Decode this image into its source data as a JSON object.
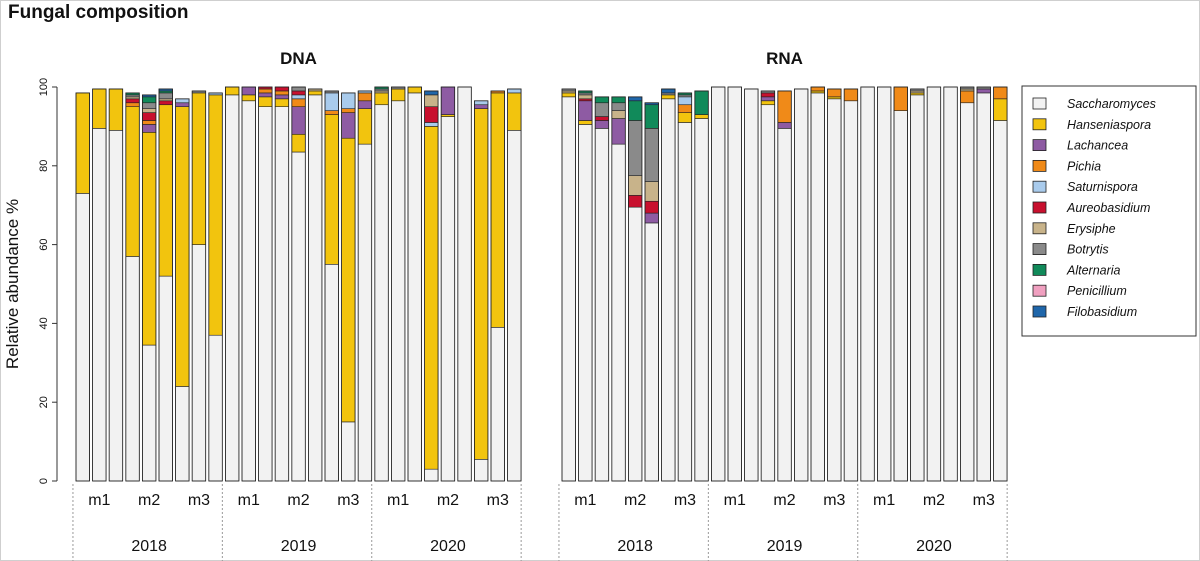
{
  "title": "Fungal composition",
  "chart_data": {
    "type": "bar",
    "stacked": true,
    "ylabel": "Relative abundance %",
    "ylim": [
      0,
      100
    ],
    "yticks": [
      0,
      20,
      40,
      60,
      80,
      100
    ],
    "legend_position": "right",
    "taxa": [
      {
        "name": "Saccharomyces",
        "color": "#f2f2f2"
      },
      {
        "name": "Hanseniaspora",
        "color": "#f2c40e"
      },
      {
        "name": "Lachancea",
        "color": "#8e5ba3"
      },
      {
        "name": "Pichia",
        "color": "#f08a18"
      },
      {
        "name": "Saturnispora",
        "color": "#a9cbec"
      },
      {
        "name": "Aureobasidium",
        "color": "#c8102e"
      },
      {
        "name": "Erysiphe",
        "color": "#c8b38a"
      },
      {
        "name": "Botrytis",
        "color": "#8a8a8a"
      },
      {
        "name": "Alternaria",
        "color": "#118a5a"
      },
      {
        "name": "Penicillium",
        "color": "#f0a0c0"
      },
      {
        "name": "Filobasidium",
        "color": "#1f66aa"
      }
    ],
    "panels": [
      {
        "title": "DNA",
        "group_labels": [
          "m1",
          "m2",
          "m3",
          "m1",
          "m2",
          "m3",
          "m1",
          "m2",
          "m3"
        ],
        "years": [
          "2018",
          "2019",
          "2020"
        ],
        "samples": [
          [
            73,
            25.5,
            0,
            0,
            0,
            0,
            0,
            0,
            0,
            0,
            0
          ],
          [
            89.5,
            10,
            0,
            0,
            0,
            0,
            0,
            0,
            0,
            0,
            0
          ],
          [
            89,
            10.5,
            0,
            0,
            0,
            0,
            0,
            0,
            0,
            0,
            0
          ],
          [
            57,
            38,
            0,
            1,
            0,
            1,
            0.5,
            0.5,
            0.5,
            0,
            0
          ],
          [
            34.5,
            54,
            2,
            1,
            0,
            2,
            1,
            1.5,
            1.5,
            0,
            0.5
          ],
          [
            52,
            43.5,
            0,
            0,
            0,
            1,
            0.5,
            1.5,
            0.5,
            0,
            0.5
          ],
          [
            24,
            71,
            1,
            0,
            1,
            0,
            0,
            0,
            0,
            0,
            0
          ],
          [
            60,
            38.5,
            0,
            0,
            0,
            0,
            0,
            0.5,
            0,
            0,
            0
          ],
          [
            37,
            61,
            0,
            0,
            0.5,
            0,
            0,
            0,
            0,
            0,
            0
          ],
          [
            98,
            2,
            0,
            0,
            0,
            0,
            0,
            0,
            0,
            0,
            0
          ],
          [
            96.5,
            1.5,
            2,
            0,
            0,
            0,
            0,
            0,
            0,
            0,
            0
          ],
          [
            95,
            2.5,
            1,
            1,
            0,
            0.5,
            0,
            0,
            0,
            0,
            0
          ],
          [
            95,
            2,
            1,
            1,
            0,
            1,
            0,
            0,
            0,
            0,
            0
          ],
          [
            83.5,
            4.5,
            7,
            2,
            1,
            1,
            0,
            1,
            0,
            0,
            0
          ],
          [
            98,
            1,
            0,
            0,
            0,
            0,
            0.5,
            0,
            0,
            0,
            0
          ],
          [
            55,
            38,
            0,
            1,
            4.5,
            0,
            0,
            0.5,
            0,
            0,
            0
          ],
          [
            15,
            72,
            6.5,
            1,
            4,
            0,
            0,
            0,
            0,
            0,
            0
          ],
          [
            85.5,
            9,
            2,
            2,
            0.5,
            0,
            0,
            0,
            0,
            0,
            0
          ],
          [
            95.5,
            3,
            0,
            0,
            0,
            0,
            0.5,
            0.5,
            0.5,
            0,
            0
          ],
          [
            96.5,
            3,
            0,
            0,
            0,
            0,
            0,
            0.5,
            0,
            0,
            0
          ],
          [
            98.5,
            1.5,
            0,
            0,
            0,
            0,
            0,
            0,
            0,
            0,
            0
          ],
          [
            3,
            87,
            0,
            0,
            1,
            4,
            3,
            0,
            0,
            0,
            1
          ],
          [
            92.5,
            0.5,
            7,
            0,
            0,
            0,
            0,
            0,
            0,
            0,
            0
          ],
          [
            100,
            0,
            0,
            0,
            0,
            0,
            0,
            0,
            0,
            0,
            0
          ],
          [
            5.5,
            89,
            1,
            0,
            1,
            0,
            0,
            0,
            0,
            0,
            0
          ],
          [
            39,
            59.5,
            0,
            0.5,
            0,
            0,
            0,
            0,
            0,
            0,
            0
          ],
          [
            89,
            9.5,
            0,
            0,
            1,
            0,
            0,
            0,
            0,
            0,
            0
          ]
        ]
      },
      {
        "title": "RNA",
        "group_labels": [
          "m1",
          "m2",
          "m3",
          "m1",
          "m2",
          "m3",
          "m1",
          "m2",
          "m3"
        ],
        "years": [
          "2018",
          "2019",
          "2020"
        ],
        "samples": [
          [
            97.5,
            1,
            0,
            0,
            0,
            0,
            0.5,
            0.5,
            0,
            0,
            0
          ],
          [
            90.5,
            1,
            5,
            0,
            0,
            0.5,
            1,
            0.5,
            0.5,
            0,
            0
          ],
          [
            89.5,
            0,
            2,
            0,
            0,
            1,
            0,
            3.5,
            1.5,
            0,
            0
          ],
          [
            85.5,
            0,
            6.5,
            0,
            0,
            0,
            2,
            2,
            1.5,
            0,
            0
          ],
          [
            69.5,
            0,
            0,
            0,
            0,
            3,
            5,
            14,
            5,
            0,
            1
          ],
          [
            65.5,
            0,
            2.5,
            0,
            0,
            3,
            5,
            13.5,
            6,
            0,
            0.5
          ],
          [
            97,
            1,
            0,
            0,
            0,
            0,
            0,
            0.5,
            0,
            0,
            1
          ],
          [
            91,
            2.5,
            0,
            2,
            2,
            0,
            0,
            0.5,
            0.5,
            0,
            0
          ],
          [
            92,
            1,
            0,
            0,
            0,
            0,
            0,
            0,
            6,
            0,
            0
          ],
          [
            100,
            0,
            0,
            0,
            0,
            0,
            0,
            0,
            0,
            0,
            0
          ],
          [
            100,
            0,
            0,
            0,
            0,
            0,
            0,
            0,
            0,
            0,
            0
          ],
          [
            99.5,
            0,
            0,
            0,
            0,
            0,
            0,
            0,
            0,
            0,
            0
          ],
          [
            95.5,
            1,
            1,
            0,
            0,
            1,
            0,
            0.5,
            0,
            0,
            0
          ],
          [
            89.5,
            0,
            1.5,
            8,
            0,
            0,
            0,
            0,
            0,
            0,
            0
          ],
          [
            99.5,
            0,
            0,
            0,
            0,
            0,
            0,
            0,
            0,
            0,
            0
          ],
          [
            98.5,
            0.5,
            0,
            1,
            0,
            0,
            0,
            0,
            0,
            0,
            0
          ],
          [
            97,
            0.5,
            0,
            2,
            0,
            0,
            0,
            0,
            0,
            0,
            0
          ],
          [
            96.5,
            0,
            0,
            3,
            0,
            0,
            0,
            0,
            0,
            0,
            0
          ],
          [
            100,
            0,
            0,
            0,
            0,
            0,
            0,
            0,
            0,
            0,
            0
          ],
          [
            100,
            0,
            0,
            0,
            0,
            0,
            0,
            0,
            0,
            0,
            0
          ],
          [
            94,
            0,
            0,
            6,
            0,
            0,
            0,
            0,
            0,
            0,
            0
          ],
          [
            98,
            0.5,
            0,
            0,
            0,
            0,
            0.5,
            0.5,
            0,
            0,
            0
          ],
          [
            100,
            0,
            0,
            0,
            0,
            0,
            0,
            0,
            0,
            0,
            0
          ],
          [
            100,
            0,
            0,
            0,
            0,
            0,
            0,
            0,
            0,
            0,
            0
          ],
          [
            96,
            0,
            0,
            3,
            0,
            0,
            0.5,
            0.5,
            0,
            0,
            0
          ],
          [
            98.5,
            0,
            1,
            0,
            0,
            0,
            0,
            0.5,
            0,
            0,
            0
          ],
          [
            91.5,
            5.5,
            0,
            3,
            0,
            0,
            0,
            0,
            0,
            0,
            0
          ]
        ]
      }
    ]
  }
}
